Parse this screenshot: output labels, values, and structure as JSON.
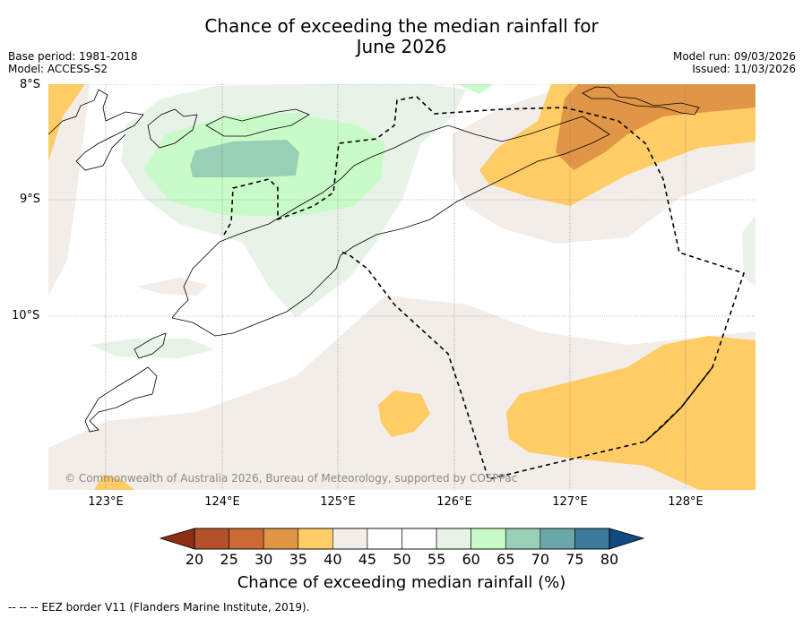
{
  "title_line1": "Chance of exceeding the median rainfall for",
  "title_line2": "June 2026",
  "base_period": "Base period: 1981-2018",
  "model": "Model: ACCESS-S2",
  "model_run": "Model run: 09/03/2026",
  "issued": "Issued: 11/03/2026",
  "copyright": "© Commonwealth of Australia 2026, Bureau of Meteorology, supported by COSPPac",
  "lat_labels": [
    "8°S",
    "9°S",
    "10°S"
  ],
  "lon_labels": [
    "123°E",
    "124°E",
    "125°E",
    "126°E",
    "127°E",
    "128°E"
  ],
  "colorbar": {
    "ticks": [
      "20",
      "25",
      "30",
      "35",
      "40",
      "45",
      "50",
      "55",
      "60",
      "65",
      "70",
      "75",
      "80"
    ],
    "colors": [
      "#a83c1f",
      "#b5512a",
      "#cc6a35",
      "#e19546",
      "#ffcc66",
      "#f2ede8",
      "#ffffff",
      "#ffffff",
      "#e8f3e8",
      "#c8fbc8",
      "#98cfb6",
      "#6aa8a8",
      "#3b7a9a",
      "#1d4e84"
    ],
    "title": "Chance of exceeding median rainfall (%)"
  },
  "footer": "--  --  -- EEZ border V11 (Flanders Marine Institute, 2019)."
}
